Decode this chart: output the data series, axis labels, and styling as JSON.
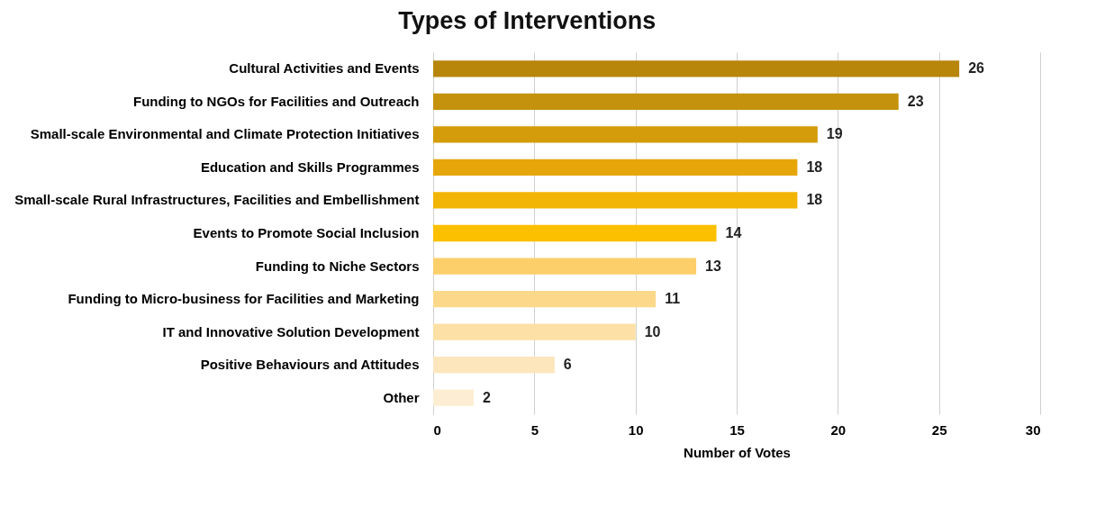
{
  "chart_data": {
    "type": "bar",
    "orientation": "horizontal",
    "title": "Types of Interventions",
    "xlabel": "Number of Votes",
    "categories": [
      "Cultural Activities and Events",
      "Funding to NGOs for Facilities and Outreach",
      "Small-scale Environmental and Climate Protection Initiatives",
      "Education and Skills Programmes",
      "Small-scale Rural Infrastructures, Facilities and Embellishment",
      "Events to Promote Social Inclusion",
      "Funding to Niche Sectors",
      "Funding to Micro-business for Facilities and Marketing",
      "IT and Innovative Solution Development",
      "Positive Behaviours and Attitudes",
      "Other"
    ],
    "values": [
      26,
      23,
      19,
      18,
      18,
      14,
      13,
      11,
      10,
      6,
      2
    ],
    "colors": [
      "#b8860b",
      "#c4920c",
      "#d49c0a",
      "#e6a60a",
      "#f2b505",
      "#fcc000",
      "#fdcf6a",
      "#fcd98a",
      "#fde0a5",
      "#fde6bc",
      "#fdedd3"
    ],
    "xlim": [
      0,
      30
    ],
    "xticks": [
      0,
      5,
      10,
      15,
      20,
      25,
      30
    ],
    "grid": "x",
    "data_labels": true
  }
}
